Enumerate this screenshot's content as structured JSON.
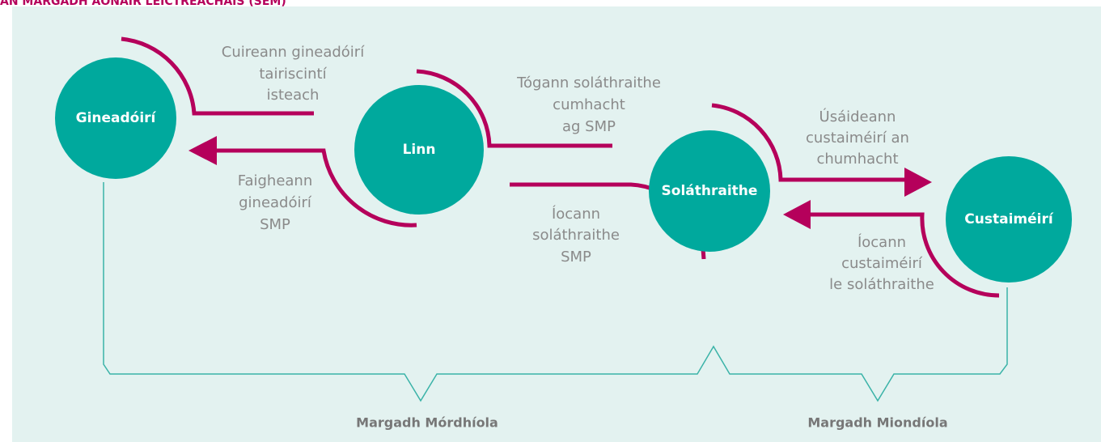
{
  "header": {
    "title": "AN MARGADH AONAIR LEICTREACHAIS (SEM)"
  },
  "nodes": [
    {
      "label": "Gineadóirí"
    },
    {
      "label": "Linn"
    },
    {
      "label": "Soláthraithe"
    },
    {
      "label": "Custaiméirí"
    }
  ],
  "flows": [
    {
      "lines": [
        "Cuireann gineadóirí",
        "tairiscintí",
        "isteach"
      ]
    },
    {
      "lines": [
        "Faigheann",
        "gineadóirí",
        "SMP"
      ]
    },
    {
      "lines": [
        "Tógann soláthraithe",
        "cumhacht",
        "ag SMP"
      ]
    },
    {
      "lines": [
        "Íocann",
        "soláthraithe",
        "SMP"
      ]
    },
    {
      "lines": [
        "Úsáideann",
        "custaiméirí an",
        "chumhacht"
      ]
    },
    {
      "lines": [
        "Íocann",
        "custaiméirí",
        "le soláthraithe"
      ]
    }
  ],
  "markets": [
    "Margadh Mórdhíola",
    "Margadh Miondíola"
  ]
}
